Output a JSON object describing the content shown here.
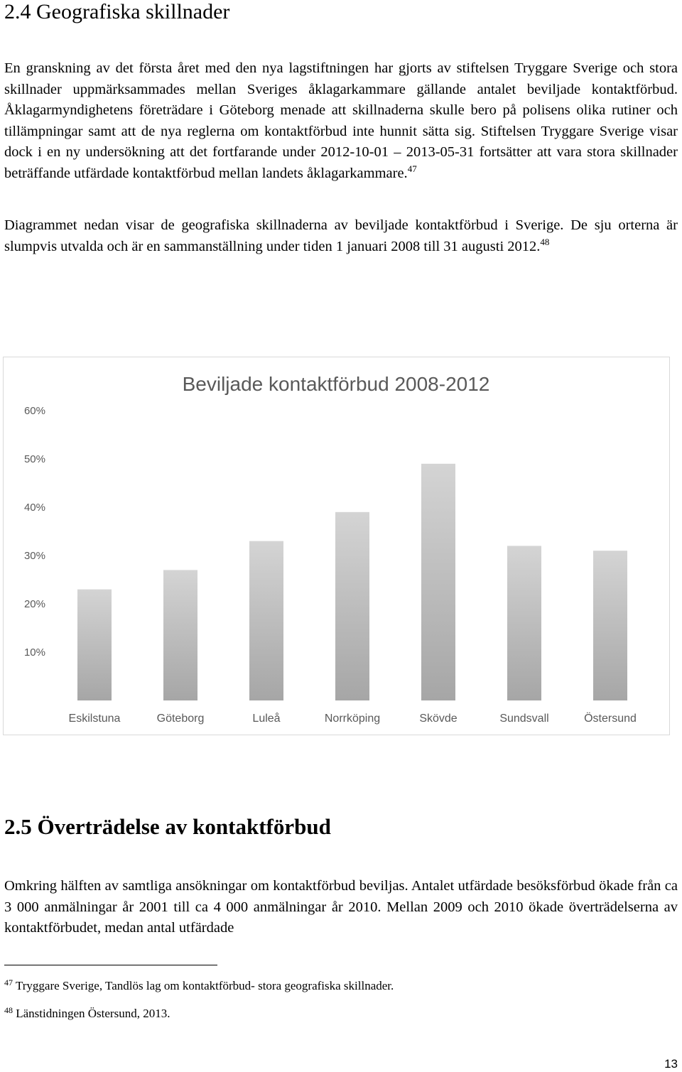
{
  "section1": {
    "heading": "2.4 Geografiska skillnader",
    "p1": {
      "text": "En granskning av det första året med den nya lagstiftningen har gjorts av stiftelsen Tryggare Sverige och stora skillnader uppmärksammades mellan Sveriges åklagarkammare gällande antalet beviljade kontaktförbud. Åklagarmyndighetens företrädare i Göteborg menade att skillnaderna skulle bero på polisens olika rutiner och tillämpningar samt att de nya reglerna om kontaktförbud inte hunnit sätta sig. Stiftelsen Tryggare Sverige visar dock i en ny undersökning att det fortfarande under 2012-10-01 – 2013-05-31 fortsätter att vara stora skillnader beträffande utfärdade kontaktförbud mellan landets åklagarkammare.",
      "ref": "47"
    },
    "p2": {
      "text": "Diagrammet nedan visar de geografiska skillnaderna av beviljade kontaktförbud i Sverige. De sju orterna är slumpvis utvalda och är en sammanställning under tiden 1 januari 2008 till 31 augusti 2012.",
      "ref": "48"
    }
  },
  "chart_data": {
    "type": "bar",
    "title": "Beviljade kontaktförbud 2008-2012",
    "categories": [
      "Eskilstuna",
      "Göteborg",
      "Luleå",
      "Norrköping",
      "Skövde",
      "Sundsvall",
      "Östersund"
    ],
    "values": [
      0.23,
      0.27,
      0.33,
      0.39,
      0.49,
      0.32,
      0.31
    ],
    "y_ticks": [
      {
        "value": 0.1,
        "label": "10%"
      },
      {
        "value": 0.2,
        "label": "20%"
      },
      {
        "value": 0.3,
        "label": "30%"
      },
      {
        "value": 0.4,
        "label": "40%"
      },
      {
        "value": 0.5,
        "label": "50%"
      },
      {
        "value": 0.6,
        "label": "60%"
      }
    ],
    "ylim": [
      0,
      0.6
    ],
    "grid": false,
    "bar_gradient": [
      "#d4d4d4",
      "#a6a6a6"
    ],
    "title_color": "#595959",
    "label_color": "#595959"
  },
  "section2": {
    "heading": "2.5 Överträdelse av kontaktförbud",
    "p1": "Omkring hälften av samtliga ansökningar om kontaktförbud beviljas. Antalet utfärdade besöksförbud ökade från ca 3 000 anmälningar år 2001 till ca 4 000 anmälningar år 2010. Mellan 2009 och 2010 ökade överträdelserna av kontaktförbudet, medan antal utfärdade"
  },
  "footnotes": [
    {
      "num": "47",
      "text": "Tryggare Sverige, Tandlös lag om kontaktförbud- stora geografiska skillnader."
    },
    {
      "num": "48",
      "text": "Länstidningen Östersund, 2013."
    }
  ],
  "page_number": "13"
}
